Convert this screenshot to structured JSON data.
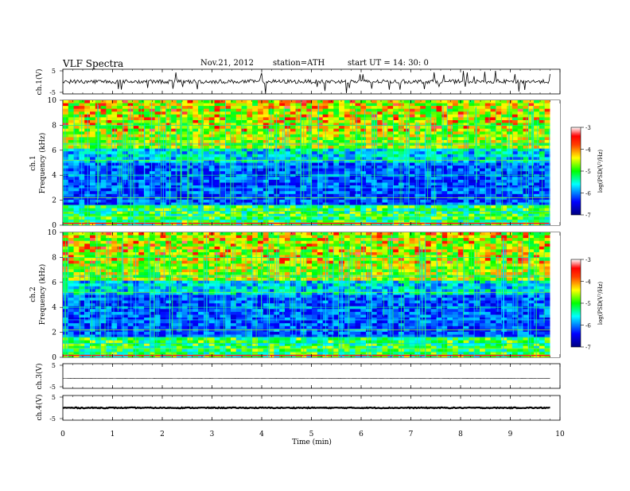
{
  "header": {
    "title": "VLF  Spectra",
    "date": "Nov.21, 2012",
    "station": "station=ATH",
    "start": "start  UT  =    14: 30: 0"
  },
  "colors": {
    "spectrum_low": "#000080",
    "spectrum_mid": "#00ff00",
    "spectrum_high": "#ff0000",
    "trace": "#000000"
  },
  "chart_data": [
    {
      "type": "line",
      "panel": "ch1-waveform",
      "ylabel": "ch.1(V)",
      "yticks": [
        "5",
        "-5"
      ],
      "ylim": [
        -5,
        5
      ],
      "x_range_min": [
        0,
        9.8
      ],
      "baseline_v": 0.0,
      "noise_amplitude_v": 0.8
    },
    {
      "type": "heatmap",
      "panel": "ch1-spectrogram",
      "ylabel_line1": "ch.1",
      "ylabel_line2": "Frequency  (kHz)",
      "yticks": [
        "0",
        "2",
        "4",
        "6",
        "8",
        "10"
      ],
      "ylim_khz": [
        0,
        10
      ],
      "x_range_min": [
        0,
        9.8
      ],
      "colorbar_label": "log(PSD(V²/Hz)",
      "colorbar_ticks": [
        "-3",
        "-4",
        "-5",
        "-6",
        "-7"
      ],
      "colorbar_range": [
        -7,
        -3
      ]
    },
    {
      "type": "heatmap",
      "panel": "ch2-spectrogram",
      "ylabel_line1": "ch.2",
      "ylabel_line2": "Frequency  (kHz)",
      "yticks": [
        "0",
        "2",
        "4",
        "6",
        "8",
        "10"
      ],
      "ylim_khz": [
        0,
        10
      ],
      "x_range_min": [
        0,
        9.8
      ],
      "colorbar_label": "log(PSD(V²/Hz)",
      "colorbar_ticks": [
        "-3",
        "-4",
        "-5",
        "-6",
        "-7"
      ],
      "colorbar_range": [
        -7,
        -3
      ]
    },
    {
      "type": "line",
      "panel": "ch3-waveform",
      "ylabel": "ch.3(V)",
      "yticks": [
        "5",
        "-5"
      ],
      "ylim": [
        -5,
        5
      ],
      "x_range_min": [
        0,
        9.8
      ],
      "baseline_v": -1.0,
      "noise_amplitude_v": 0.05
    },
    {
      "type": "line",
      "panel": "ch4-waveform",
      "ylabel": "ch.4(V)",
      "yticks": [
        "5",
        "-5"
      ],
      "ylim": [
        -5,
        5
      ],
      "x_range_min": [
        0,
        9.8
      ],
      "baseline_v": 0.0,
      "noise_amplitude_v": 0.2
    }
  ],
  "xaxis": {
    "label": "Time  (min)",
    "ticks": [
      "0",
      "1",
      "2",
      "3",
      "4",
      "5",
      "6",
      "7",
      "8",
      "9",
      "10"
    ],
    "xlim": [
      0,
      10
    ]
  }
}
